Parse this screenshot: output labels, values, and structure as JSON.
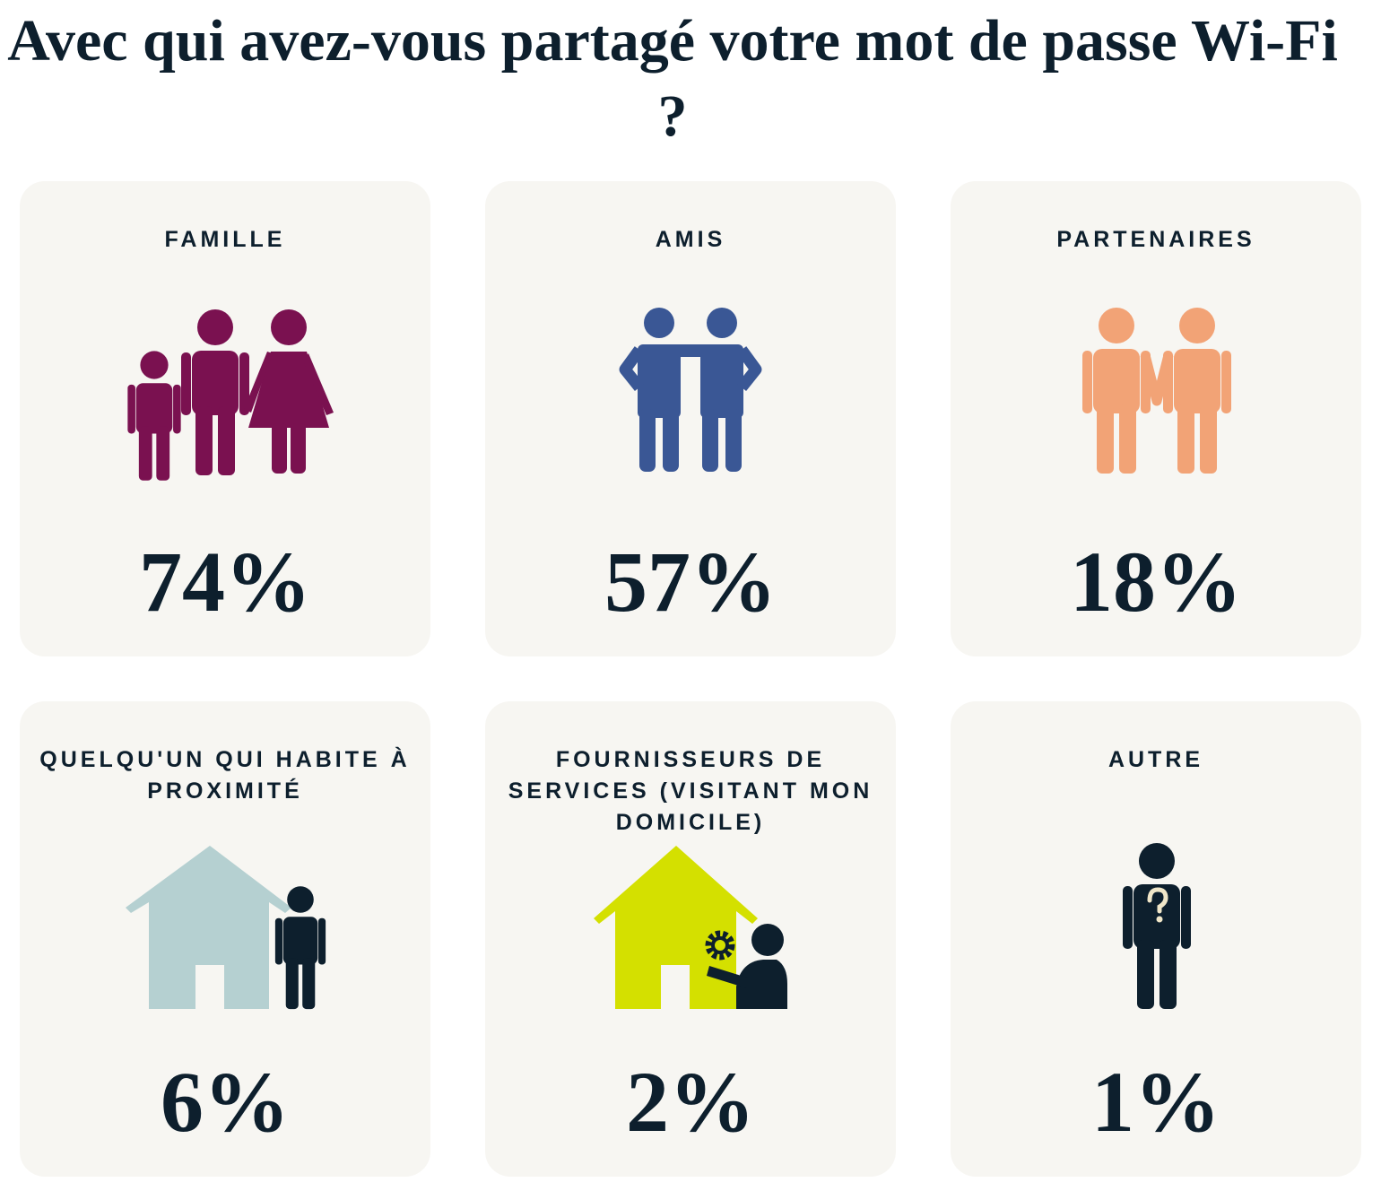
{
  "header": {
    "title": "Avec qui avez-vous partagé votre mot de passe Wi-Fi ?"
  },
  "cards": [
    {
      "label": "FAMILLE",
      "value": "74%"
    },
    {
      "label": "AMIS",
      "value": "57%"
    },
    {
      "label": "PARTENAIRES",
      "value": "18%"
    },
    {
      "label": "QUELQU'UN QUI HABITE À PROXIMITÉ",
      "value": "6%"
    },
    {
      "label": "FOURNISSEURS DE SERVICES (VISITANT MON DOMICILE)",
      "value": "2%"
    },
    {
      "label": "AUTRE",
      "value": "1%"
    }
  ]
}
